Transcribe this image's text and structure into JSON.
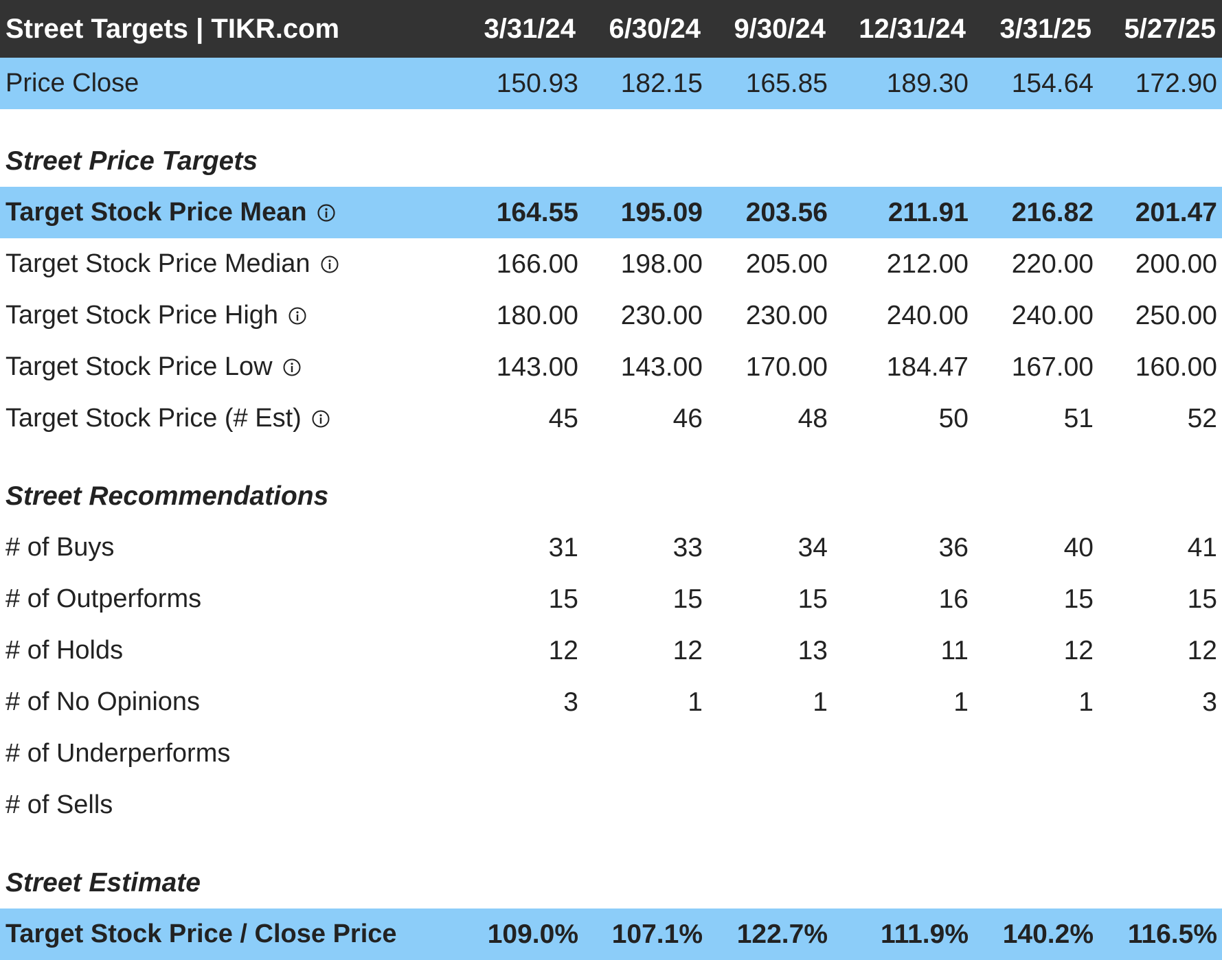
{
  "header": {
    "title": "Street Targets | TIKR.com",
    "dates": [
      "3/31/24",
      "6/30/24",
      "9/30/24",
      "12/31/24",
      "3/31/25",
      "5/27/25"
    ]
  },
  "price_close": {
    "label": "Price Close",
    "values": [
      "150.93",
      "182.15",
      "165.85",
      "189.30",
      "154.64",
      "172.90"
    ]
  },
  "sections": {
    "price_targets": "Street Price Targets",
    "recommendations": "Street Recommendations",
    "estimate": "Street Estimate"
  },
  "targets": {
    "mean": {
      "label": "Target Stock Price Mean",
      "values": [
        "164.55",
        "195.09",
        "203.56",
        "211.91",
        "216.82",
        "201.47"
      ]
    },
    "median": {
      "label": "Target Stock Price Median",
      "values": [
        "166.00",
        "198.00",
        "205.00",
        "212.00",
        "220.00",
        "200.00"
      ]
    },
    "high": {
      "label": "Target Stock Price High",
      "values": [
        "180.00",
        "230.00",
        "230.00",
        "240.00",
        "240.00",
        "250.00"
      ]
    },
    "low": {
      "label": "Target Stock Price Low",
      "values": [
        "143.00",
        "143.00",
        "170.00",
        "184.47",
        "167.00",
        "160.00"
      ]
    },
    "est": {
      "label": "Target Stock Price (# Est)",
      "values": [
        "45",
        "46",
        "48",
        "50",
        "51",
        "52"
      ]
    }
  },
  "recommendations": {
    "buys": {
      "label": "# of Buys",
      "values": [
        "31",
        "33",
        "34",
        "36",
        "40",
        "41"
      ]
    },
    "outperforms": {
      "label": "# of Outperforms",
      "values": [
        "15",
        "15",
        "15",
        "16",
        "15",
        "15"
      ]
    },
    "holds": {
      "label": "# of Holds",
      "values": [
        "12",
        "12",
        "13",
        "11",
        "12",
        "12"
      ]
    },
    "no_opinions": {
      "label": "# of No Opinions",
      "values": [
        "3",
        "1",
        "1",
        "1",
        "1",
        "3"
      ]
    },
    "underperforms": {
      "label": "# of Underperforms",
      "values": [
        "",
        "",
        "",
        "",
        "",
        ""
      ]
    },
    "sells": {
      "label": "# of Sells",
      "values": [
        "",
        "",
        "",
        "",
        "",
        ""
      ]
    }
  },
  "estimate": {
    "ratio": {
      "label": "Target Stock Price / Close Price",
      "values": [
        "109.0%",
        "107.1%",
        "122.7%",
        "111.9%",
        "140.2%",
        "116.5%"
      ]
    }
  },
  "colors": {
    "header_bg": "#333333",
    "highlight_bg": "#8ccdf9",
    "text": "#222222"
  }
}
